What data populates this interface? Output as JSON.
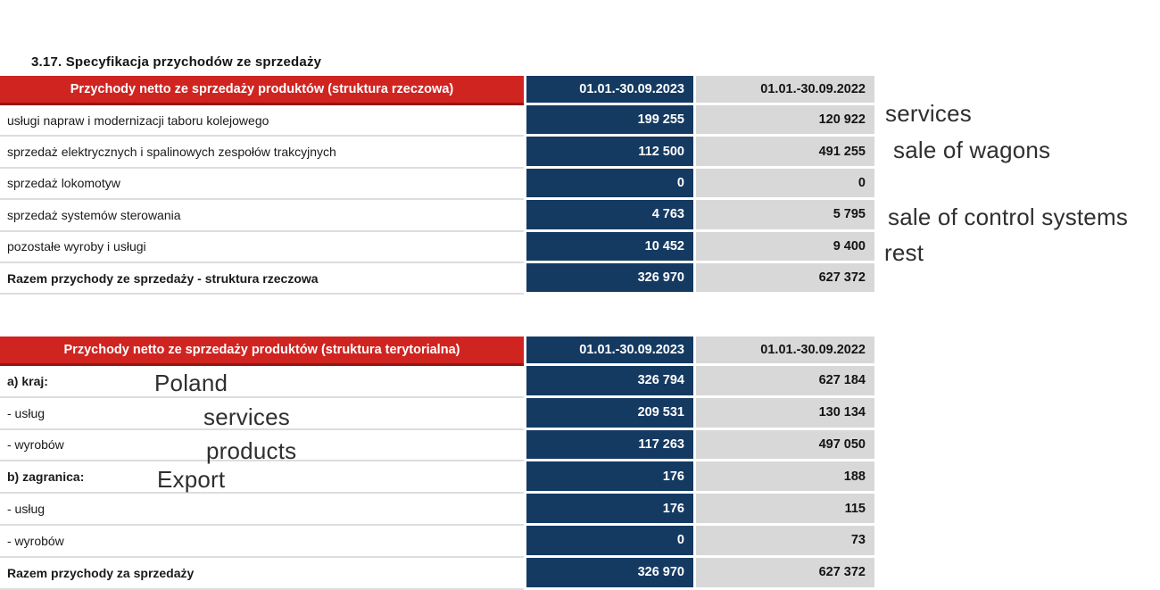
{
  "title": "3.17. Specyfikacja przychodów ze sprzedaży",
  "colors": {
    "header_red": "#d02421",
    "header_red_edge": "#911712",
    "navy": "#153a62",
    "gray": "#d8d8d8",
    "text_dark": "#1a1a1a"
  },
  "columns": {
    "period_2023": "01.01.-30.09.2023",
    "period_2022": "01.01.-30.09.2022"
  },
  "table_rzeczowa": {
    "header": "Przychody netto ze sprzedaży produktów  (struktura rzeczowa)",
    "rows": [
      {
        "label": "usługi napraw i modernizacji taboru kolejowego",
        "v2023": "199 255",
        "v2022": "120 922"
      },
      {
        "label": "sprzedaż elektrycznych i spalinowych zespołów trakcyjnych",
        "v2023": "112 500",
        "v2022": "491 255"
      },
      {
        "label": "sprzedaż lokomotyw",
        "v2023": "0",
        "v2022": "0"
      },
      {
        "label": "sprzedaż systemów sterowania",
        "v2023": "4 763",
        "v2022": "5 795"
      },
      {
        "label": "pozostałe wyroby i usługi",
        "v2023": "10 452",
        "v2022": "9 400"
      },
      {
        "label": "Razem przychody ze sprzedaży - struktura rzeczowa",
        "v2023": "326 970",
        "v2022": "627 372"
      }
    ]
  },
  "table_terytorialna": {
    "header": "Przychody netto ze sprzedaży produktów  (struktura terytorialna)",
    "rows": [
      {
        "label": "a) kraj:",
        "v2023": "326 794",
        "v2022": "627 184"
      },
      {
        "label": "- usług",
        "v2023": "209 531",
        "v2022": "130 134"
      },
      {
        "label": "- wyrobów",
        "v2023": "117 263",
        "v2022": "497 050"
      },
      {
        "label": "b) zagranica:",
        "v2023": "176",
        "v2022": "188"
      },
      {
        "label": "- usług",
        "v2023": "176",
        "v2022": "115"
      },
      {
        "label": "- wyrobów",
        "v2023": "0",
        "v2022": "73"
      },
      {
        "label": "Razem przychody za sprzedaży",
        "v2023": "326 970",
        "v2022": "627 372"
      }
    ]
  },
  "annotations": {
    "right": {
      "services": "services",
      "wagons": "sale of wagons",
      "control_systems": "sale of control systems",
      "rest": "rest"
    },
    "inline": {
      "poland": "Poland",
      "services": "services",
      "products": "products",
      "export": "Export"
    }
  }
}
